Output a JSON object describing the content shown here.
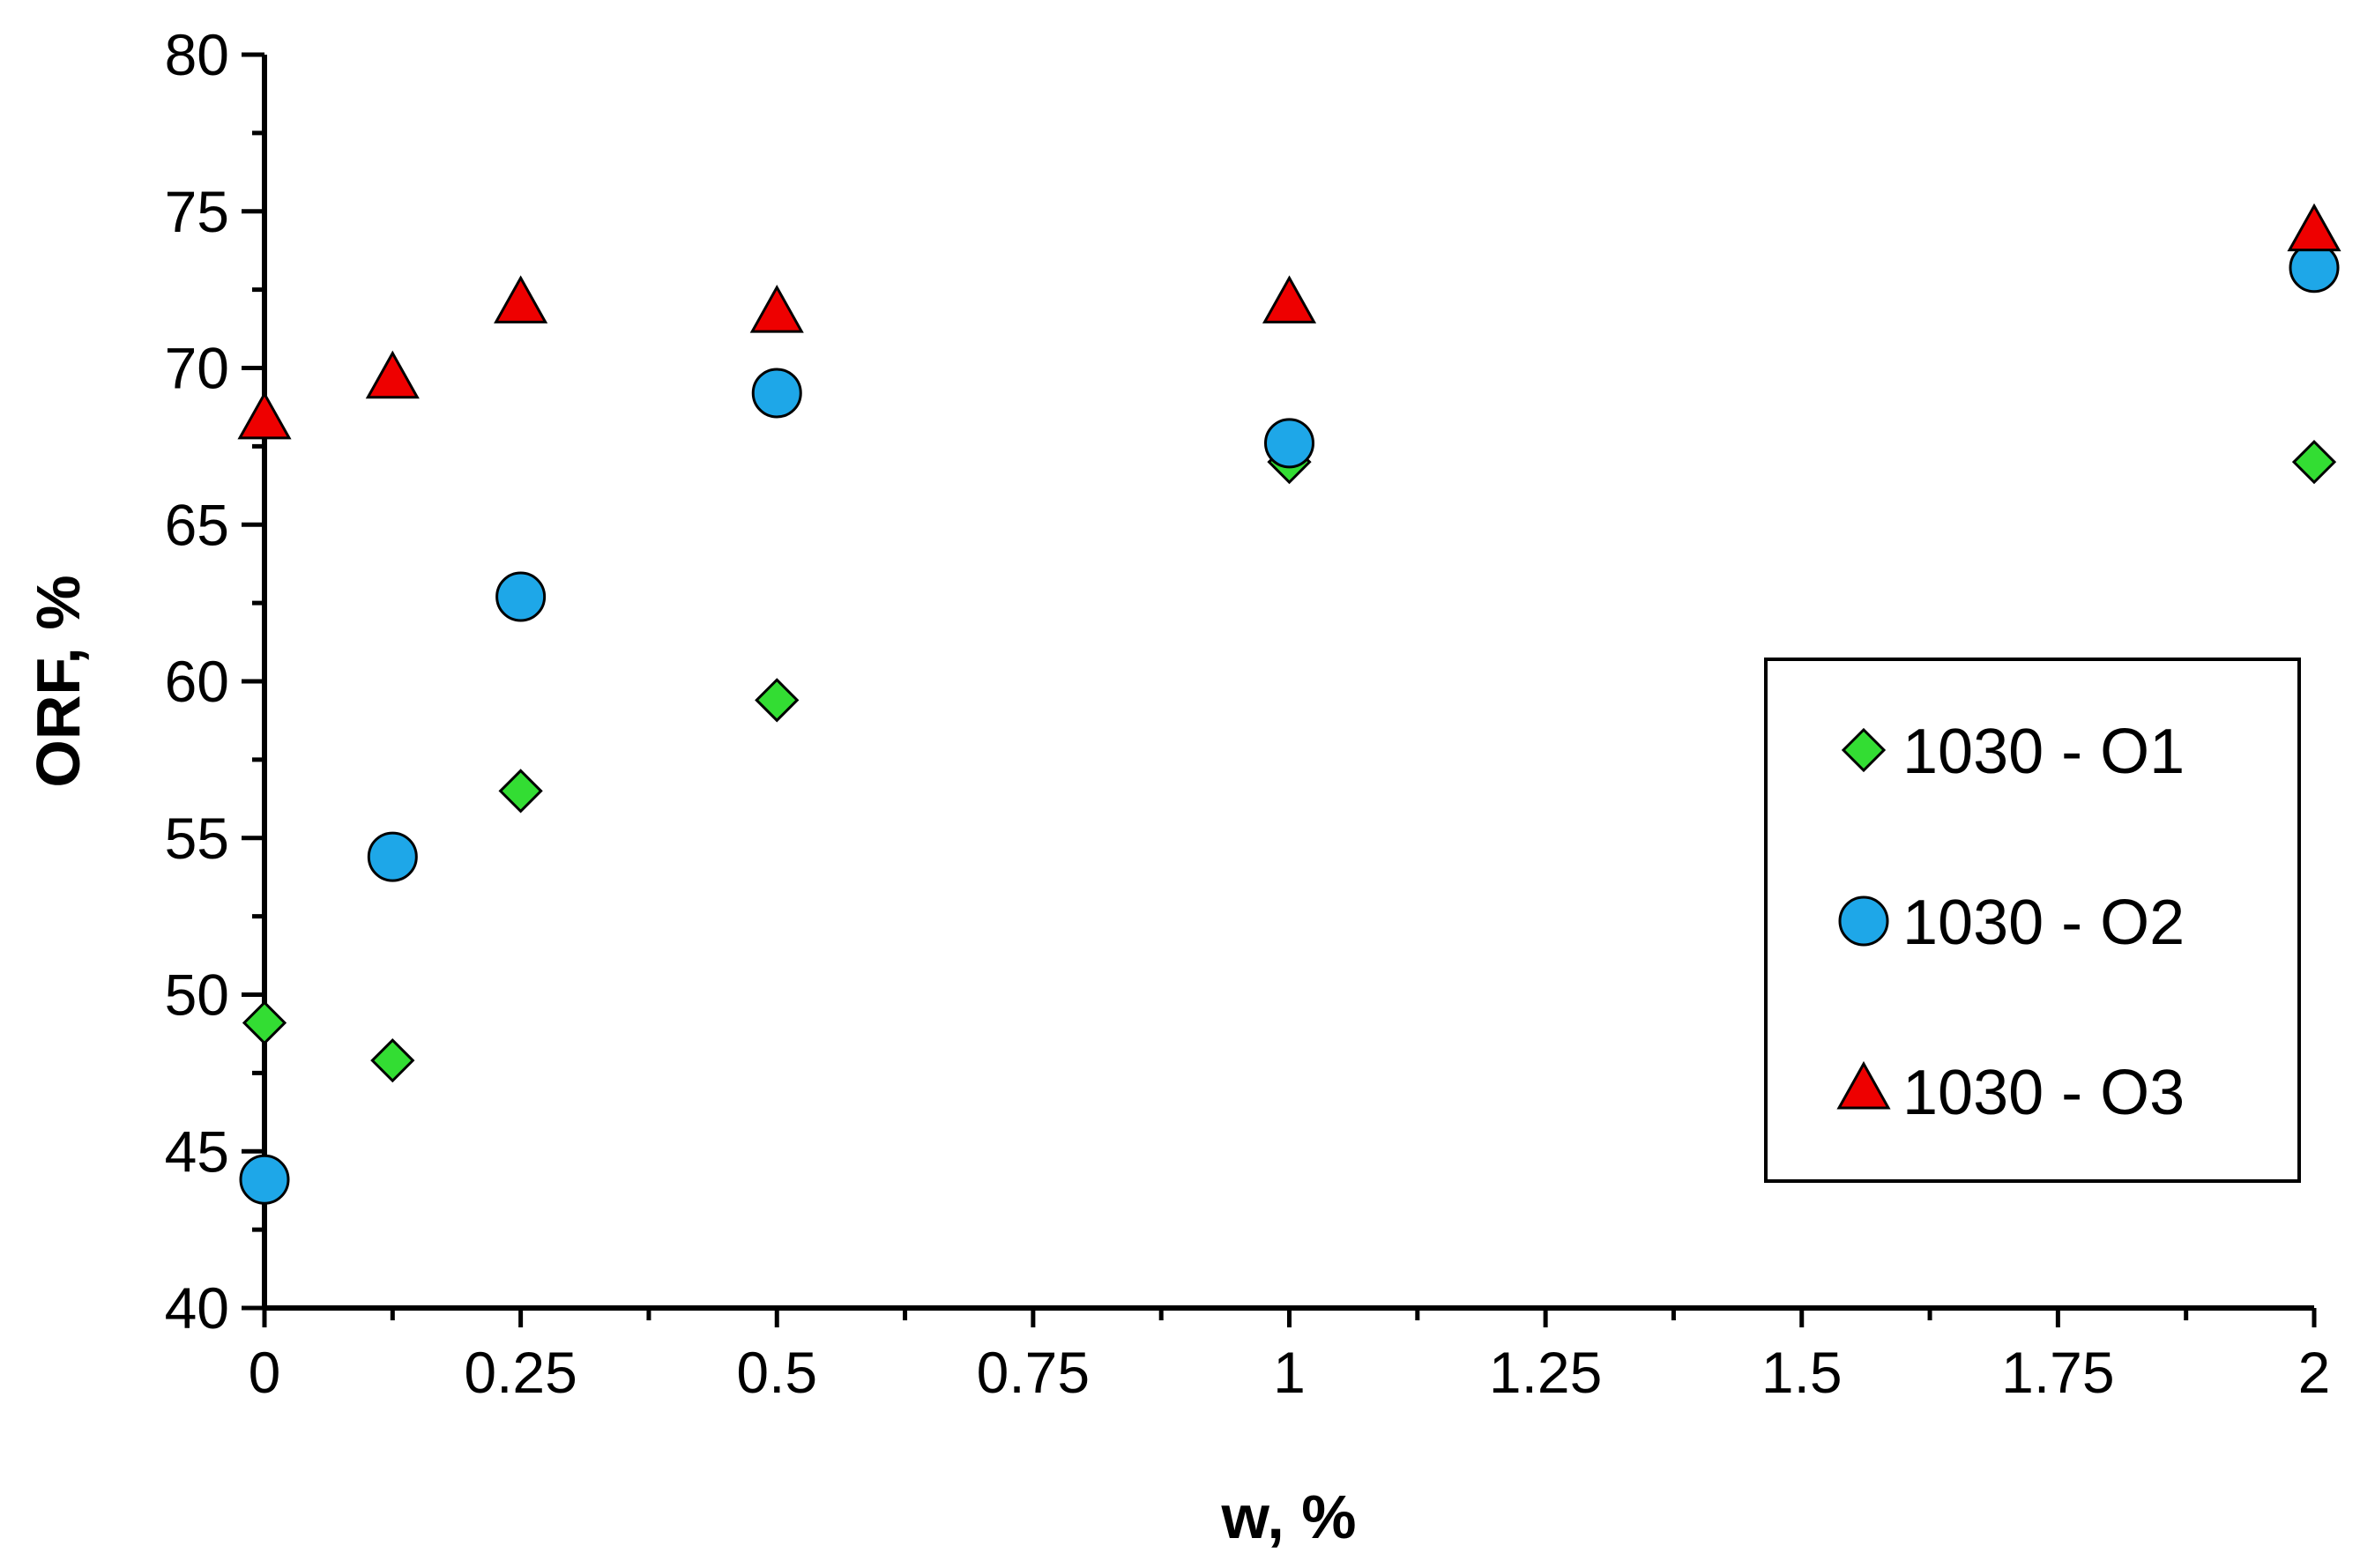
{
  "chart_data": {
    "type": "scatter",
    "xlabel": "w, %",
    "ylabel": "ORF, %",
    "xlim": [
      0,
      2
    ],
    "ylim": [
      40,
      80
    ],
    "x_ticks": [
      {
        "value": 0,
        "label": "0"
      },
      {
        "value": 0.25,
        "label": "0.25"
      },
      {
        "value": 0.5,
        "label": "0.5"
      },
      {
        "value": 0.75,
        "label": "0.75"
      },
      {
        "value": 1,
        "label": "1"
      },
      {
        "value": 1.25,
        "label": "1.25"
      },
      {
        "value": 1.5,
        "label": "1.5"
      },
      {
        "value": 1.75,
        "label": "1.75"
      },
      {
        "value": 2,
        "label": "2"
      }
    ],
    "y_ticks": [
      {
        "value": 40,
        "label": "40"
      },
      {
        "value": 45,
        "label": "45"
      },
      {
        "value": 50,
        "label": "50"
      },
      {
        "value": 55,
        "label": "55"
      },
      {
        "value": 60,
        "label": "60"
      },
      {
        "value": 65,
        "label": "65"
      },
      {
        "value": 70,
        "label": "70"
      },
      {
        "value": 75,
        "label": "75"
      },
      {
        "value": 80,
        "label": "80"
      }
    ],
    "grid": false,
    "legend_position": "right",
    "series": [
      {
        "name": "1030 - O1",
        "marker": "diamond",
        "color": "#33dd33",
        "points": [
          {
            "x": 0,
            "y": 49.1
          },
          {
            "x": 0.125,
            "y": 47.9
          },
          {
            "x": 0.25,
            "y": 56.5
          },
          {
            "x": 0.5,
            "y": 59.4
          },
          {
            "x": 1,
            "y": 67.0
          },
          {
            "x": 2,
            "y": 67.0
          }
        ]
      },
      {
        "name": "1030 - O2",
        "marker": "circle",
        "color": "#1ea7e8",
        "points": [
          {
            "x": 0,
            "y": 44.1
          },
          {
            "x": 0.125,
            "y": 54.4
          },
          {
            "x": 0.25,
            "y": 62.7
          },
          {
            "x": 0.5,
            "y": 69.2
          },
          {
            "x": 1,
            "y": 67.6
          },
          {
            "x": 2,
            "y": 73.2
          }
        ]
      },
      {
        "name": "1030 - O3",
        "marker": "triangle",
        "color": "#ee0000",
        "points": [
          {
            "x": 0,
            "y": 68.3
          },
          {
            "x": 0.125,
            "y": 69.6
          },
          {
            "x": 0.25,
            "y": 72.0
          },
          {
            "x": 0.5,
            "y": 71.7
          },
          {
            "x": 1,
            "y": 72.0
          },
          {
            "x": 2,
            "y": 74.3
          }
        ]
      }
    ]
  }
}
